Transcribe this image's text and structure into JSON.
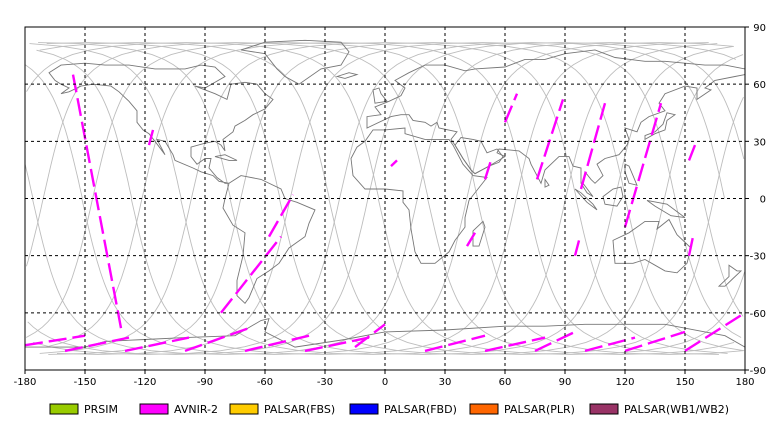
{
  "map": {
    "x_axis": {
      "min": -180,
      "max": 180,
      "ticks": [
        -180,
        -150,
        -120,
        -90,
        -60,
        -30,
        0,
        30,
        60,
        90,
        120,
        150,
        180
      ]
    },
    "y_axis": {
      "min": -90,
      "max": 90,
      "ticks": [
        90,
        60,
        30,
        0,
        -30,
        -60,
        -90
      ]
    },
    "grid": true,
    "colors": {
      "orbit_track": "#bdbdbd",
      "coastline": "#777777",
      "grid": "#000000",
      "observation": "#ff00ff"
    }
  },
  "legend": [
    {
      "label": "PRSIM",
      "color": "#99cc00"
    },
    {
      "label": "AVNIR-2",
      "color": "#ff00ff"
    },
    {
      "label": "PALSAR(FBS)",
      "color": "#ffcc00"
    },
    {
      "label": "PALSAR(FBD)",
      "color": "#0000ff"
    },
    {
      "label": "PALSAR(PLR)",
      "color": "#ff6600"
    },
    {
      "label": "PALSAR(WB1/WB2)",
      "color": "#993366"
    }
  ],
  "observation_segments": [
    {
      "sensor": "AVNIR-2",
      "lon": [
        -156,
        -132
      ],
      "lat": [
        65,
        -68
      ]
    },
    {
      "sensor": "AVNIR-2",
      "lon": [
        -82,
        -52
      ],
      "lat": [
        -60,
        -20
      ]
    },
    {
      "sensor": "AVNIR-2",
      "lon": [
        -58,
        -46
      ],
      "lat": [
        -20,
        2
      ]
    },
    {
      "sensor": "AVNIR-2",
      "lon": [
        -118,
        -116
      ],
      "lat": [
        28,
        36
      ]
    },
    {
      "sensor": "AVNIR-2",
      "lon": [
        3,
        6
      ],
      "lat": [
        17,
        20
      ]
    },
    {
      "sensor": "AVNIR-2",
      "lon": [
        41,
        45
      ],
      "lat": [
        -25,
        -18
      ]
    },
    {
      "sensor": "AVNIR-2",
      "lon": [
        50,
        53
      ],
      "lat": [
        10,
        20
      ]
    },
    {
      "sensor": "AVNIR-2",
      "lon": [
        60,
        66
      ],
      "lat": [
        40,
        55
      ]
    },
    {
      "sensor": "AVNIR-2",
      "lon": [
        76,
        89
      ],
      "lat": [
        10,
        52
      ]
    },
    {
      "sensor": "AVNIR-2",
      "lon": [
        98,
        110
      ],
      "lat": [
        5,
        50
      ]
    },
    {
      "sensor": "AVNIR-2",
      "lon": [
        120,
        138
      ],
      "lat": [
        -15,
        50
      ]
    },
    {
      "sensor": "AVNIR-2",
      "lon": [
        152,
        155
      ],
      "lat": [
        20,
        28
      ]
    },
    {
      "sensor": "AVNIR-2",
      "lon": [
        152,
        154
      ],
      "lat": [
        -30,
        -20
      ]
    },
    {
      "sensor": "AVNIR-2",
      "lon": [
        95,
        97
      ],
      "lat": [
        -30,
        -22
      ]
    },
    {
      "sensor": "AVNIR-2",
      "lon": [
        -180,
        -150
      ],
      "lat": [
        -77,
        -72
      ]
    },
    {
      "sensor": "AVNIR-2",
      "lon": [
        -160,
        -128
      ],
      "lat": [
        -80,
        -73
      ]
    },
    {
      "sensor": "AVNIR-2",
      "lon": [
        -130,
        -98
      ],
      "lat": [
        -80,
        -73
      ]
    },
    {
      "sensor": "AVNIR-2",
      "lon": [
        -100,
        -68
      ],
      "lat": [
        -80,
        -68
      ]
    },
    {
      "sensor": "AVNIR-2",
      "lon": [
        -70,
        -38
      ],
      "lat": [
        -80,
        -72
      ]
    },
    {
      "sensor": "AVNIR-2",
      "lon": [
        -40,
        -8
      ],
      "lat": [
        -80,
        -73
      ]
    },
    {
      "sensor": "AVNIR-2",
      "lon": [
        -15,
        0
      ],
      "lat": [
        -78,
        -66
      ]
    },
    {
      "sensor": "AVNIR-2",
      "lon": [
        20,
        50
      ],
      "lat": [
        -80,
        -72
      ]
    },
    {
      "sensor": "AVNIR-2",
      "lon": [
        50,
        80
      ],
      "lat": [
        -80,
        -73
      ]
    },
    {
      "sensor": "AVNIR-2",
      "lon": [
        75,
        95
      ],
      "lat": [
        -80,
        -70
      ]
    },
    {
      "sensor": "AVNIR-2",
      "lon": [
        100,
        125
      ],
      "lat": [
        -80,
        -73
      ]
    },
    {
      "sensor": "AVNIR-2",
      "lon": [
        120,
        150
      ],
      "lat": [
        -80,
        -70
      ]
    },
    {
      "sensor": "AVNIR-2",
      "lon": [
        150,
        180
      ],
      "lat": [
        -80,
        -60
      ]
    }
  ]
}
